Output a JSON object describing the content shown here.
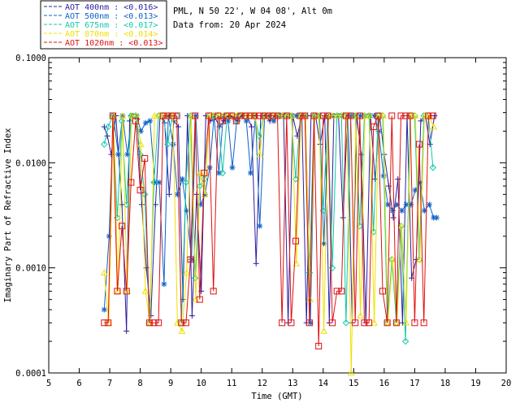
{
  "header": {
    "location": "PML, N 50 22', W 04 08', Alt 0m",
    "date_line": "Data from: 20 Apr 2024"
  },
  "chart_data": {
    "type": "line",
    "title": "",
    "xlabel": "Time (GMT)",
    "ylabel": "Imaginary Part of Refractive Index",
    "xlim": [
      5,
      20
    ],
    "ylim": [
      0.0001,
      0.1
    ],
    "yscale": "log",
    "xticks": [
      5,
      6,
      7,
      8,
      9,
      10,
      11,
      12,
      13,
      14,
      15,
      16,
      17,
      18,
      19,
      20
    ],
    "ytick_labels": [
      "0.1000",
      "0.0100",
      "0.0010",
      "0.0001"
    ],
    "legend_position": "top-left, above plot",
    "series": [
      {
        "name": "AOT  400nm : <0.016>",
        "color": "#2b1ea0",
        "marker": "plus",
        "x": [
          6.82,
          6.92,
          7.05,
          7.2,
          7.4,
          7.55,
          7.65,
          7.75,
          7.9,
          8.05,
          8.2,
          8.35,
          8.5,
          8.65,
          8.8,
          8.95,
          9.1,
          9.25,
          9.4,
          9.55,
          9.7,
          9.85,
          10.0,
          10.15,
          10.3,
          10.45,
          10.6,
          10.75,
          10.9,
          11.05,
          11.2,
          11.35,
          11.5,
          11.65,
          11.8,
          11.95,
          12.1,
          12.25,
          12.4,
          12.55,
          12.7,
          12.85,
          13.0,
          13.15,
          13.3,
          13.45,
          13.6,
          13.75,
          13.9,
          14.05,
          14.2,
          14.35,
          14.5,
          14.65,
          14.8,
          14.95,
          15.1,
          15.25,
          15.4,
          15.55,
          15.7,
          15.85,
          16.0,
          16.15,
          16.3,
          16.45,
          16.6,
          16.75,
          16.9,
          17.05,
          17.2,
          17.35,
          17.5,
          17.65
        ],
        "values": [
          0.022,
          0.018,
          0.012,
          0.028,
          0.004,
          0.00025,
          0.025,
          0.028,
          0.026,
          0.004,
          0.001,
          0.00035,
          0.004,
          0.028,
          0.024,
          0.005,
          0.025,
          0.022,
          0.0005,
          0.028,
          0.00035,
          0.005,
          0.0006,
          0.028,
          0.025,
          0.027,
          0.022,
          0.025,
          0.028,
          0.027,
          0.025,
          0.028,
          0.028,
          0.022,
          0.0011,
          0.028,
          0.028,
          0.025,
          0.028,
          0.028,
          0.028,
          0.0003,
          0.028,
          0.018,
          0.028,
          0.0003,
          0.028,
          0.028,
          0.015,
          0.028,
          0.0003,
          0.028,
          0.028,
          0.003,
          0.028,
          0.0003,
          0.028,
          0.012,
          0.0003,
          0.028,
          0.007,
          0.028,
          0.012,
          0.006,
          0.003,
          0.007,
          0.0003,
          0.028,
          0.0008,
          0.0012,
          0.025,
          0.028,
          0.015,
          0.028
        ]
      },
      {
        "name": "AOT  500nm : <0.013>",
        "color": "#1060c8",
        "marker": "asterisk",
        "x": [
          6.82,
          6.98,
          7.12,
          7.28,
          7.42,
          7.58,
          7.72,
          7.88,
          8.02,
          8.18,
          8.32,
          8.48,
          8.62,
          8.78,
          8.92,
          9.08,
          9.22,
          9.38,
          9.52,
          9.68,
          9.82,
          9.98,
          10.12,
          10.28,
          10.42,
          10.58,
          10.72,
          10.88,
          11.02,
          11.18,
          11.32,
          11.48,
          11.62,
          11.78,
          11.92,
          12.08,
          12.22,
          12.38,
          12.52,
          12.68,
          12.82,
          12.98,
          13.12,
          13.28,
          13.42,
          13.58,
          13.72,
          13.88,
          14.02,
          14.18,
          14.32,
          14.48,
          14.62,
          14.78,
          14.92,
          15.08,
          15.22,
          15.38,
          15.52,
          15.68,
          15.82,
          15.98,
          16.12,
          16.28,
          16.42,
          16.58,
          16.72,
          16.88,
          17.02,
          17.18,
          17.32,
          17.48,
          17.62,
          17.72
        ],
        "values": [
          0.0004,
          0.002,
          0.028,
          0.012,
          0.028,
          0.012,
          0.028,
          0.028,
          0.02,
          0.024,
          0.025,
          0.0065,
          0.0065,
          0.0007,
          0.028,
          0.015,
          0.005,
          0.007,
          0.0035,
          0.0012,
          0.028,
          0.004,
          0.005,
          0.009,
          0.028,
          0.008,
          0.028,
          0.025,
          0.009,
          0.028,
          0.028,
          0.025,
          0.008,
          0.028,
          0.0025,
          0.028,
          0.028,
          0.025,
          0.028,
          0.028,
          0.028,
          0.028,
          0.028,
          0.028,
          0.028,
          0.0003,
          0.028,
          0.028,
          0.0017,
          0.028,
          0.028,
          0.028,
          0.028,
          0.028,
          0.028,
          0.028,
          0.028,
          0.028,
          0.028,
          0.028,
          0.02,
          0.0075,
          0.004,
          0.0035,
          0.004,
          0.0035,
          0.004,
          0.004,
          0.0055,
          0.0065,
          0.0035,
          0.004,
          0.003,
          0.003
        ]
      },
      {
        "name": "AOT  675nm : <0.017>",
        "color": "#10c8a8",
        "marker": "diamond",
        "x": [
          6.82,
          6.95,
          7.1,
          7.25,
          7.4,
          7.55,
          7.7,
          7.85,
          8.0,
          8.15,
          8.3,
          8.45,
          8.6,
          8.75,
          8.9,
          9.05,
          9.2,
          9.35,
          9.5,
          9.65,
          9.8,
          9.95,
          10.1,
          10.25,
          10.4,
          10.55,
          10.7,
          10.85,
          11.0,
          11.15,
          11.3,
          11.45,
          11.6,
          11.75,
          11.9,
          12.05,
          12.2,
          12.35,
          12.5,
          12.65,
          12.8,
          12.95,
          13.1,
          13.25,
          13.4,
          13.55,
          13.7,
          13.85,
          14.0,
          14.15,
          14.3,
          14.45,
          14.6,
          14.75,
          14.9,
          15.05,
          15.2,
          15.35,
          15.5,
          15.65,
          15.8,
          15.95,
          16.1,
          16.25,
          16.4,
          16.55,
          16.7,
          16.85,
          17.0,
          17.15,
          17.3,
          17.45,
          17.6
        ],
        "values": [
          0.015,
          0.022,
          0.028,
          0.003,
          0.025,
          0.004,
          0.028,
          0.028,
          0.012,
          0.005,
          0.0003,
          0.0065,
          0.028,
          0.028,
          0.015,
          0.028,
          0.028,
          0.0003,
          0.0065,
          0.028,
          0.0008,
          0.006,
          0.007,
          0.028,
          0.028,
          0.028,
          0.008,
          0.028,
          0.028,
          0.025,
          0.028,
          0.028,
          0.028,
          0.028,
          0.018,
          0.028,
          0.028,
          0.028,
          0.028,
          0.028,
          0.028,
          0.028,
          0.007,
          0.028,
          0.028,
          0.0009,
          0.028,
          0.028,
          0.0035,
          0.028,
          0.001,
          0.028,
          0.028,
          0.0003,
          0.028,
          0.028,
          0.0025,
          0.028,
          0.028,
          0.0022,
          0.028,
          0.028,
          0.0003,
          0.0012,
          0.0003,
          0.0025,
          0.0002,
          0.028,
          0.028,
          0.0012,
          0.028,
          0.028,
          0.009
        ]
      },
      {
        "name": "AOT  870nm : <0.014>",
        "color": "#f0e000",
        "marker": "triangle",
        "x": [
          6.82,
          6.97,
          7.12,
          7.27,
          7.42,
          7.57,
          7.72,
          7.87,
          8.02,
          8.17,
          8.32,
          8.47,
          8.62,
          8.77,
          8.92,
          9.07,
          9.22,
          9.37,
          9.52,
          9.67,
          9.82,
          9.97,
          10.12,
          10.27,
          10.42,
          10.57,
          10.72,
          10.87,
          11.02,
          11.17,
          11.32,
          11.47,
          11.62,
          11.77,
          11.92,
          12.07,
          12.22,
          12.37,
          12.52,
          12.67,
          12.82,
          12.97,
          13.12,
          13.27,
          13.42,
          13.57,
          13.72,
          13.87,
          14.02,
          14.17,
          14.32,
          14.47,
          14.62,
          14.77,
          14.92,
          15.07,
          15.22,
          15.37,
          15.52,
          15.67,
          15.82,
          15.97,
          16.12,
          16.27,
          16.42,
          16.57,
          16.72,
          16.87,
          17.02,
          17.17,
          17.32,
          17.47,
          17.62
        ],
        "values": [
          0.0009,
          0.0003,
          0.028,
          0.0006,
          0.028,
          0.0006,
          0.028,
          0.028,
          0.015,
          0.0006,
          0.0003,
          0.028,
          0.028,
          0.028,
          0.028,
          0.028,
          0.0003,
          0.00025,
          0.0009,
          0.028,
          0.0005,
          0.008,
          0.005,
          0.028,
          0.028,
          0.028,
          0.028,
          0.028,
          0.028,
          0.028,
          0.028,
          0.028,
          0.028,
          0.028,
          0.012,
          0.028,
          0.028,
          0.028,
          0.028,
          0.028,
          0.028,
          0.028,
          0.0011,
          0.028,
          0.028,
          0.0005,
          0.028,
          0.028,
          0.00025,
          0.028,
          0.028,
          0.028,
          0.028,
          0.028,
          0.0001,
          0.028,
          0.00035,
          0.028,
          0.028,
          0.0003,
          0.028,
          0.028,
          0.0003,
          0.0012,
          0.0003,
          0.0025,
          0.0003,
          0.028,
          0.028,
          0.0012,
          0.028,
          0.028,
          0.022
        ]
      },
      {
        "name": "AOT 1020nm : <0.013>",
        "color": "#e01010",
        "marker": "square",
        "x": [
          6.82,
          6.95,
          7.1,
          7.25,
          7.4,
          7.55,
          7.7,
          7.85,
          8.0,
          8.15,
          8.3,
          8.45,
          8.6,
          8.75,
          8.9,
          9.05,
          9.2,
          9.35,
          9.5,
          9.65,
          9.8,
          9.95,
          10.1,
          10.25,
          10.4,
          10.55,
          10.7,
          10.85,
          11.0,
          11.15,
          11.3,
          11.45,
          11.6,
          11.75,
          11.9,
          12.05,
          12.2,
          12.35,
          12.5,
          12.65,
          12.8,
          12.95,
          13.1,
          13.25,
          13.4,
          13.55,
          13.7,
          13.85,
          14.0,
          14.15,
          14.3,
          14.45,
          14.6,
          14.75,
          14.9,
          15.05,
          15.2,
          15.35,
          15.5,
          15.65,
          15.8,
          15.95,
          16.1,
          16.25,
          16.4,
          16.55,
          16.7,
          16.85,
          17.0,
          17.15,
          17.3,
          17.45,
          17.6
        ],
        "values": [
          0.0003,
          0.0003,
          0.028,
          0.0006,
          0.0025,
          0.0006,
          0.0065,
          0.025,
          0.0055,
          0.011,
          0.0003,
          0.0003,
          0.0003,
          0.028,
          0.028,
          0.028,
          0.028,
          0.0003,
          0.0003,
          0.0012,
          0.028,
          0.0005,
          0.008,
          0.028,
          0.0006,
          0.028,
          0.025,
          0.028,
          0.028,
          0.025,
          0.028,
          0.028,
          0.028,
          0.028,
          0.028,
          0.028,
          0.028,
          0.028,
          0.028,
          0.0003,
          0.028,
          0.0003,
          0.0018,
          0.028,
          0.028,
          0.0003,
          0.028,
          0.00018,
          0.028,
          0.028,
          0.0003,
          0.0006,
          0.0006,
          0.028,
          0.028,
          0.0003,
          0.028,
          0.0003,
          0.0003,
          0.022,
          0.028,
          0.0006,
          0.0003,
          0.028,
          0.0003,
          0.028,
          0.028,
          0.028,
          0.0003,
          0.015,
          0.0003,
          0.028,
          0.028
        ]
      }
    ]
  }
}
